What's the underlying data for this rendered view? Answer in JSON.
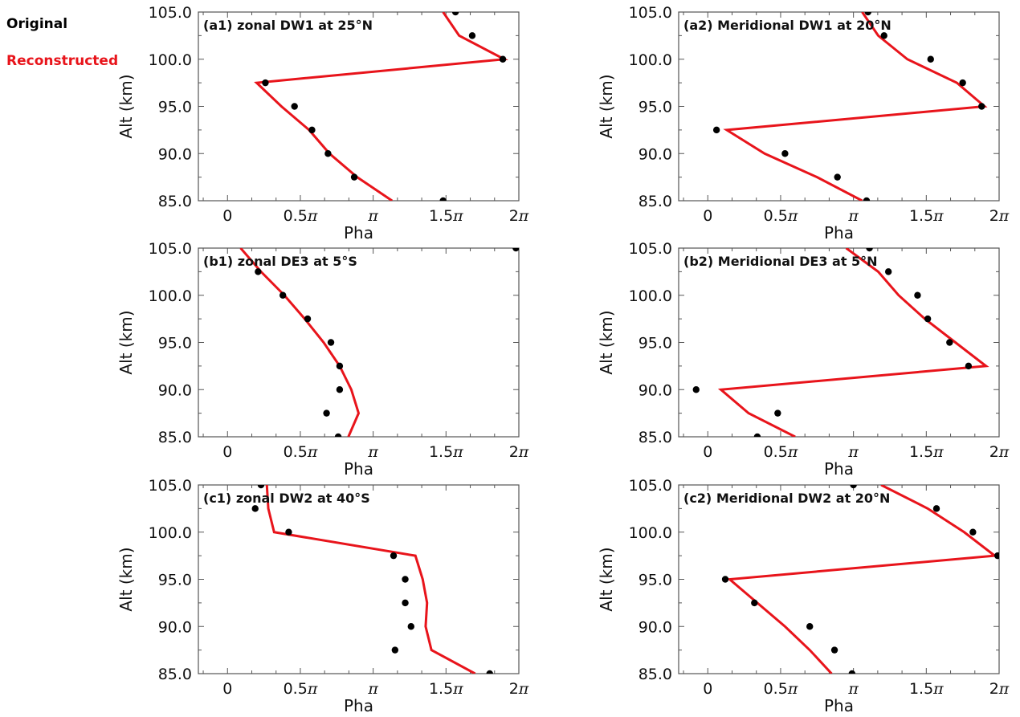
{
  "legend": {
    "original_label": "Original",
    "reconstructed_label": "Reconstructed",
    "original_color": "#000000",
    "reconstructed_color": "#e8141b"
  },
  "chart_data": [
    {
      "id": "a1",
      "type": "line+scatter",
      "title": "(a1) zonal DW1 at 25°N",
      "xlabel": "Pha",
      "ylabel": "Alt (km)",
      "xlim_pi": [
        -0.2,
        2.0
      ],
      "ylim": [
        85.0,
        105.0
      ],
      "x_ticks": [
        {
          "v": 0,
          "label": "0"
        },
        {
          "v": 0.5,
          "label": "0.5π"
        },
        {
          "v": 1,
          "label": "π"
        },
        {
          "v": 1.5,
          "label": "1.5π"
        },
        {
          "v": 2,
          "label": "2π"
        }
      ],
      "y_ticks": [
        "85.0",
        "90.0",
        "95.0",
        "100.0",
        "105.0"
      ],
      "altitude_km": [
        105.0,
        102.5,
        100.0,
        97.5,
        95.0,
        92.5,
        90.0,
        87.5,
        85.0
      ],
      "series": [
        {
          "name": "Original",
          "style": "dots",
          "phase_pi": [
            1.565,
            1.68,
            1.89,
            0.26,
            0.46,
            0.58,
            0.69,
            0.87,
            1.48
          ]
        },
        {
          "name": "Reconstructed",
          "style": "line",
          "phase_pi": [
            1.48,
            1.59,
            1.9,
            0.2,
            0.37,
            0.56,
            0.7,
            0.89,
            1.13
          ]
        }
      ]
    },
    {
      "id": "a2",
      "type": "line+scatter",
      "title": "(a2) Meridional DW1 at 20°N",
      "xlabel": "Pha",
      "ylabel": "Alt (km)",
      "xlim_pi": [
        -0.2,
        2.0
      ],
      "ylim": [
        85.0,
        105.0
      ],
      "x_ticks": [
        {
          "v": 0,
          "label": "0"
        },
        {
          "v": 0.5,
          "label": "0.5π"
        },
        {
          "v": 1,
          "label": "π"
        },
        {
          "v": 1.5,
          "label": "1.5π"
        },
        {
          "v": 2,
          "label": "2π"
        }
      ],
      "y_ticks": [
        "85.0",
        "90.0",
        "95.0",
        "100.0",
        "105.0"
      ],
      "altitude_km": [
        105.0,
        102.5,
        100.0,
        97.5,
        95.0,
        92.5,
        90.0,
        87.5,
        85.0
      ],
      "series": [
        {
          "name": "Original",
          "style": "dots",
          "phase_pi": [
            1.1,
            1.21,
            1.53,
            1.75,
            1.88,
            0.06,
            0.53,
            0.89,
            1.09
          ]
        },
        {
          "name": "Reconstructed",
          "style": "line",
          "phase_pi": [
            1.06,
            1.17,
            1.37,
            1.71,
            1.9,
            0.13,
            0.39,
            0.75,
            1.06
          ]
        }
      ]
    },
    {
      "id": "b1",
      "type": "line+scatter",
      "title": "(b1) zonal DE3 at 5°S",
      "xlabel": "Pha",
      "ylabel": "Alt (km)",
      "xlim_pi": [
        -0.2,
        2.0
      ],
      "ylim": [
        85.0,
        105.0
      ],
      "x_ticks": [
        {
          "v": 0,
          "label": "0"
        },
        {
          "v": 0.5,
          "label": "0.5π"
        },
        {
          "v": 1,
          "label": "π"
        },
        {
          "v": 1.5,
          "label": "1.5π"
        },
        {
          "v": 2,
          "label": "2π"
        }
      ],
      "y_ticks": [
        "85.0",
        "90.0",
        "95.0",
        "100.0",
        "105.0"
      ],
      "altitude_km": [
        105.0,
        102.5,
        100.0,
        97.5,
        95.0,
        92.5,
        90.0,
        87.5,
        85.0
      ],
      "series": [
        {
          "name": "Original",
          "style": "dots",
          "phase_pi": [
            1.98,
            0.21,
            0.38,
            0.55,
            0.71,
            0.77,
            0.77,
            0.68,
            0.76
          ]
        },
        {
          "name": "Reconstructed",
          "style": "line",
          "phase_pi": [
            0.09,
            0.23,
            0.39,
            0.53,
            0.66,
            0.77,
            0.85,
            0.9,
            0.83
          ]
        }
      ]
    },
    {
      "id": "b2",
      "type": "line+scatter",
      "title": "(b2) Meridional DE3 at 5°N",
      "xlabel": "Pha",
      "ylabel": "Alt (km)",
      "xlim_pi": [
        -0.2,
        2.0
      ],
      "ylim": [
        85.0,
        105.0
      ],
      "x_ticks": [
        {
          "v": 0,
          "label": "0"
        },
        {
          "v": 0.5,
          "label": "0.5π"
        },
        {
          "v": 1,
          "label": "π"
        },
        {
          "v": 1.5,
          "label": "1.5π"
        },
        {
          "v": 2,
          "label": "2π"
        }
      ],
      "y_ticks": [
        "85.0",
        "90.0",
        "95.0",
        "100.0",
        "105.0"
      ],
      "altitude_km": [
        105.0,
        102.5,
        100.0,
        97.5,
        95.0,
        92.5,
        90.0,
        87.5,
        85.0
      ],
      "series": [
        {
          "name": "Original",
          "style": "dots",
          "phase_pi": [
            1.11,
            1.24,
            1.44,
            1.51,
            1.66,
            1.79,
            -0.08,
            0.48,
            0.34
          ]
        },
        {
          "name": "Reconstructed",
          "style": "line",
          "phase_pi": [
            0.95,
            1.17,
            1.31,
            1.49,
            1.7,
            1.91,
            0.09,
            0.28,
            0.6
          ]
        }
      ]
    },
    {
      "id": "c1",
      "type": "line+scatter",
      "title": "(c1) zonal DW2 at 40°S",
      "xlabel": "Pha",
      "ylabel": "Alt (km)",
      "xlim_pi": [
        -0.2,
        2.0
      ],
      "ylim": [
        85.0,
        105.0
      ],
      "x_ticks": [
        {
          "v": 0,
          "label": "0"
        },
        {
          "v": 0.5,
          "label": "0.5π"
        },
        {
          "v": 1,
          "label": "π"
        },
        {
          "v": 1.5,
          "label": "1.5π"
        },
        {
          "v": 2,
          "label": "2π"
        }
      ],
      "y_ticks": [
        "85.0",
        "90.0",
        "95.0",
        "100.0",
        "105.0"
      ],
      "altitude_km": [
        105.0,
        102.5,
        100.0,
        97.5,
        95.0,
        92.5,
        90.0,
        87.5,
        85.0
      ],
      "series": [
        {
          "name": "Original",
          "style": "dots",
          "phase_pi": [
            0.23,
            0.19,
            0.42,
            1.14,
            1.22,
            1.22,
            1.26,
            1.15,
            1.8
          ]
        },
        {
          "name": "Reconstructed",
          "style": "line",
          "phase_pi": [
            0.27,
            0.28,
            0.32,
            1.29,
            1.34,
            1.37,
            1.36,
            1.4,
            1.7
          ]
        }
      ]
    },
    {
      "id": "c2",
      "type": "line+scatter",
      "title": "(c2) Meridional DW2 at 20°N",
      "xlabel": "Pha",
      "ylabel": "Alt (km)",
      "xlim_pi": [
        -0.2,
        2.0
      ],
      "ylim": [
        85.0,
        105.0
      ],
      "x_ticks": [
        {
          "v": 0,
          "label": "0"
        },
        {
          "v": 0.5,
          "label": "0.5π"
        },
        {
          "v": 1,
          "label": "π"
        },
        {
          "v": 1.5,
          "label": "1.5π"
        },
        {
          "v": 2,
          "label": "2π"
        }
      ],
      "y_ticks": [
        "85.0",
        "90.0",
        "95.0",
        "100.0",
        "105.0"
      ],
      "altitude_km": [
        105.0,
        102.5,
        100.0,
        97.5,
        95.0,
        92.5,
        90.0,
        87.5,
        85.0
      ],
      "series": [
        {
          "name": "Original",
          "style": "dots",
          "phase_pi": [
            1.0,
            1.57,
            1.82,
            1.99,
            0.12,
            0.32,
            0.7,
            0.87,
            0.99
          ]
        },
        {
          "name": "Reconstructed",
          "style": "line",
          "phase_pi": [
            1.19,
            1.51,
            1.76,
            1.97,
            0.15,
            0.34,
            0.53,
            0.7,
            0.85
          ]
        }
      ]
    }
  ]
}
